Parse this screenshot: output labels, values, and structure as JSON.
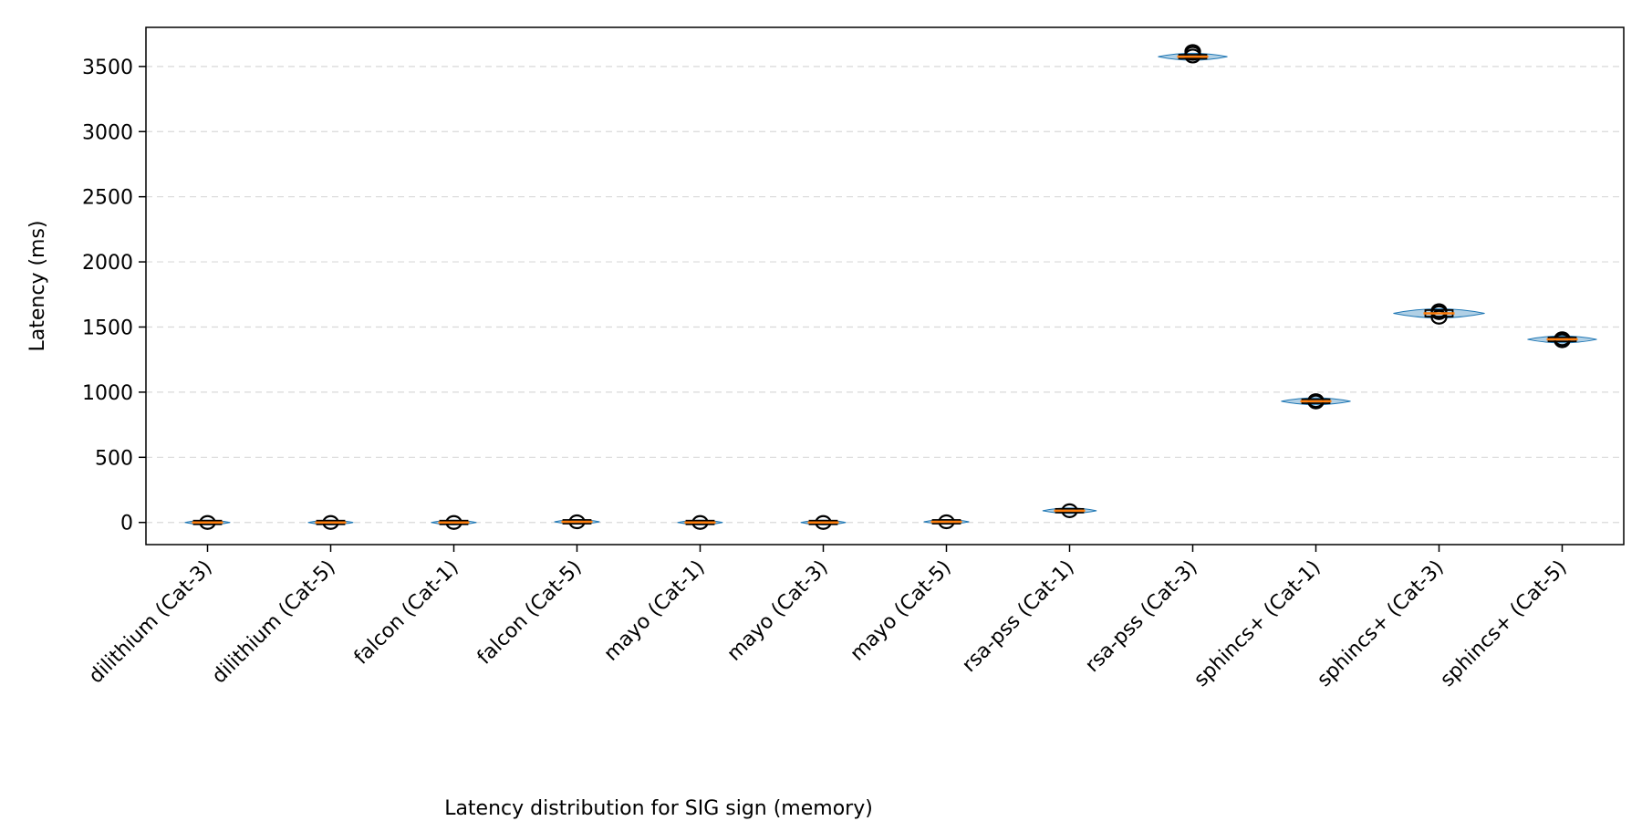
{
  "chart_data": {
    "type": "box",
    "categories": [
      "dilithium (Cat-3)",
      "dilithium (Cat-5)",
      "falcon (Cat-1)",
      "falcon (Cat-5)",
      "mayo (Cat-1)",
      "mayo (Cat-3)",
      "mayo (Cat-5)",
      "rsa-pss (Cat-1)",
      "rsa-pss (Cat-3)",
      "sphincs+ (Cat-1)",
      "sphincs+ (Cat-3)",
      "sphincs+ (Cat-5)"
    ],
    "medians": [
      0,
      0,
      0,
      5,
      0,
      0,
      5,
      90,
      3575,
      930,
      1605,
      1405
    ],
    "spread": [
      4,
      4,
      4,
      4,
      4,
      4,
      4,
      8,
      15,
      15,
      25,
      15
    ],
    "outliers": [
      [
        0
      ],
      [
        0
      ],
      [
        0
      ],
      [
        5
      ],
      [
        0
      ],
      [
        0
      ],
      [
        5
      ],
      [
        90
      ],
      [
        3580,
        3600,
        3615
      ],
      [
        925,
        935
      ],
      [
        1575,
        1610,
        1625
      ],
      [
        1395,
        1410
      ]
    ],
    "xlabel": "Latency distribution for SIG sign (memory)",
    "ylabel": "Latency (ms)",
    "ylim": [
      -170,
      3800
    ],
    "yticks": [
      0,
      500,
      1000,
      1500,
      2000,
      2500,
      3000,
      3500
    ],
    "grid": "y-dashed",
    "colors": {
      "violin": "#1f77b4",
      "median": "#ff7f0e",
      "grid": "#d9d9d9",
      "frame": "#000000"
    }
  }
}
